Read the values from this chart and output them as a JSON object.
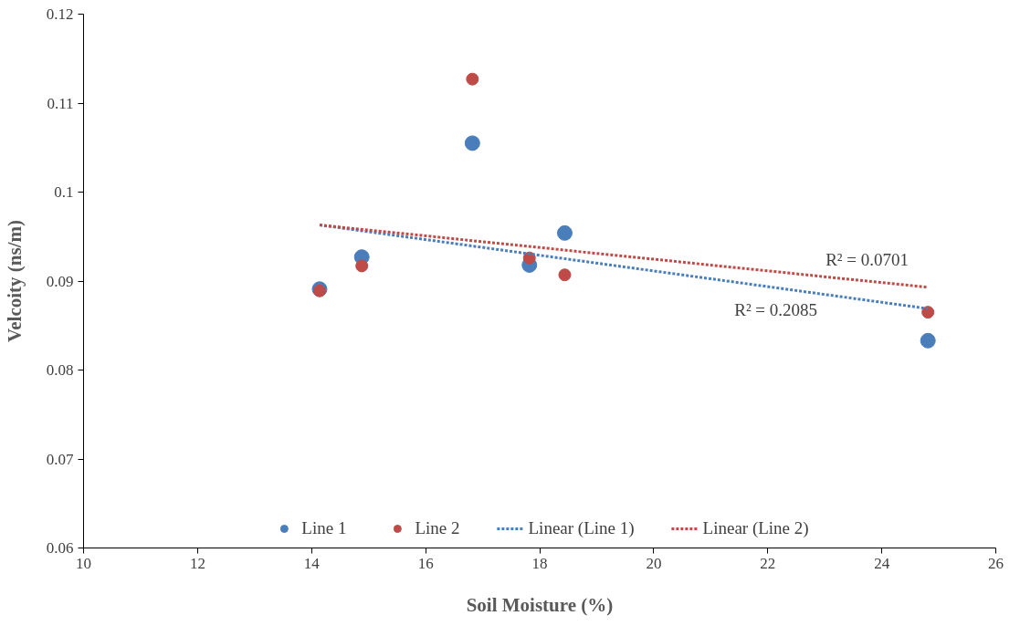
{
  "chart_data": {
    "type": "scatter",
    "xlabel": "Soil Moisture (%)",
    "ylabel": "Velcoity (ns/m)",
    "xlim": [
      10,
      26
    ],
    "xticks": [
      10,
      12,
      14,
      16,
      18,
      20,
      22,
      24,
      26
    ],
    "ylim": [
      0.06,
      0.12
    ],
    "yticks": [
      0.06,
      0.07,
      0.08,
      0.09,
      0.1,
      0.11,
      0.12
    ],
    "grid": false,
    "legend": "bottom",
    "marker": "circle",
    "series": [
      {
        "name": "Line 1",
        "color": "#4a7ebb",
        "x": [
          14.14,
          14.88,
          16.82,
          17.82,
          18.44,
          24.81
        ],
        "values": [
          0.0891,
          0.0927,
          0.1055,
          0.0918,
          0.0954,
          0.0833
        ]
      },
      {
        "name": "Line 2",
        "color": "#be4b48",
        "x": [
          14.14,
          14.88,
          16.82,
          17.82,
          18.44,
          24.81
        ],
        "values": [
          0.0889,
          0.0917,
          0.1127,
          0.0926,
          0.0907,
          0.0865
        ]
      },
      {
        "name": "Linear (Line 1)",
        "type": "line",
        "marker": "none",
        "line_style": "dotted",
        "color": "#4a7ebb",
        "x": [
          14.14,
          24.81
        ],
        "values": [
          0.0963,
          0.0869
        ]
      },
      {
        "name": "Linear (Line 2)",
        "type": "line",
        "marker": "none",
        "line_style": "dotted",
        "color": "#be4b48",
        "x": [
          14.14,
          24.81
        ],
        "values": [
          0.0963,
          0.0893
        ]
      }
    ],
    "annotations": [
      "R² = 0.2085",
      "R² = 0.0701"
    ]
  }
}
